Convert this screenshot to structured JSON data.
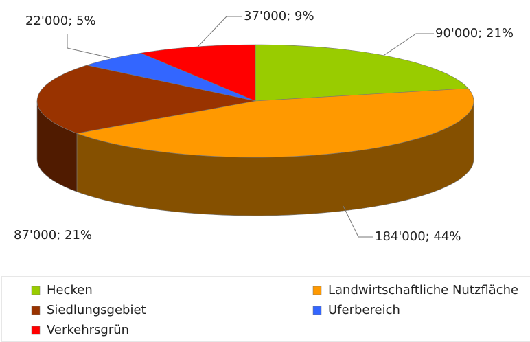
{
  "chart_data": {
    "type": "pie3d",
    "categories": [
      "Hecken",
      "Landwirtschaftliche Nutzfläche",
      "Siedlungsgebiet",
      "Uferbereich",
      "Verkehrsgrün"
    ],
    "values": [
      90000,
      184000,
      87000,
      22000,
      37000
    ],
    "value_labels": [
      "90'000; 21%",
      "184'000; 44%",
      "87'000; 21%",
      "22'000; 5%",
      "37'000; 9%"
    ],
    "colors": [
      "#99cc00",
      "#ff9900",
      "#993300",
      "#3366ff",
      "#ff0000"
    ],
    "legend": "bottom"
  }
}
